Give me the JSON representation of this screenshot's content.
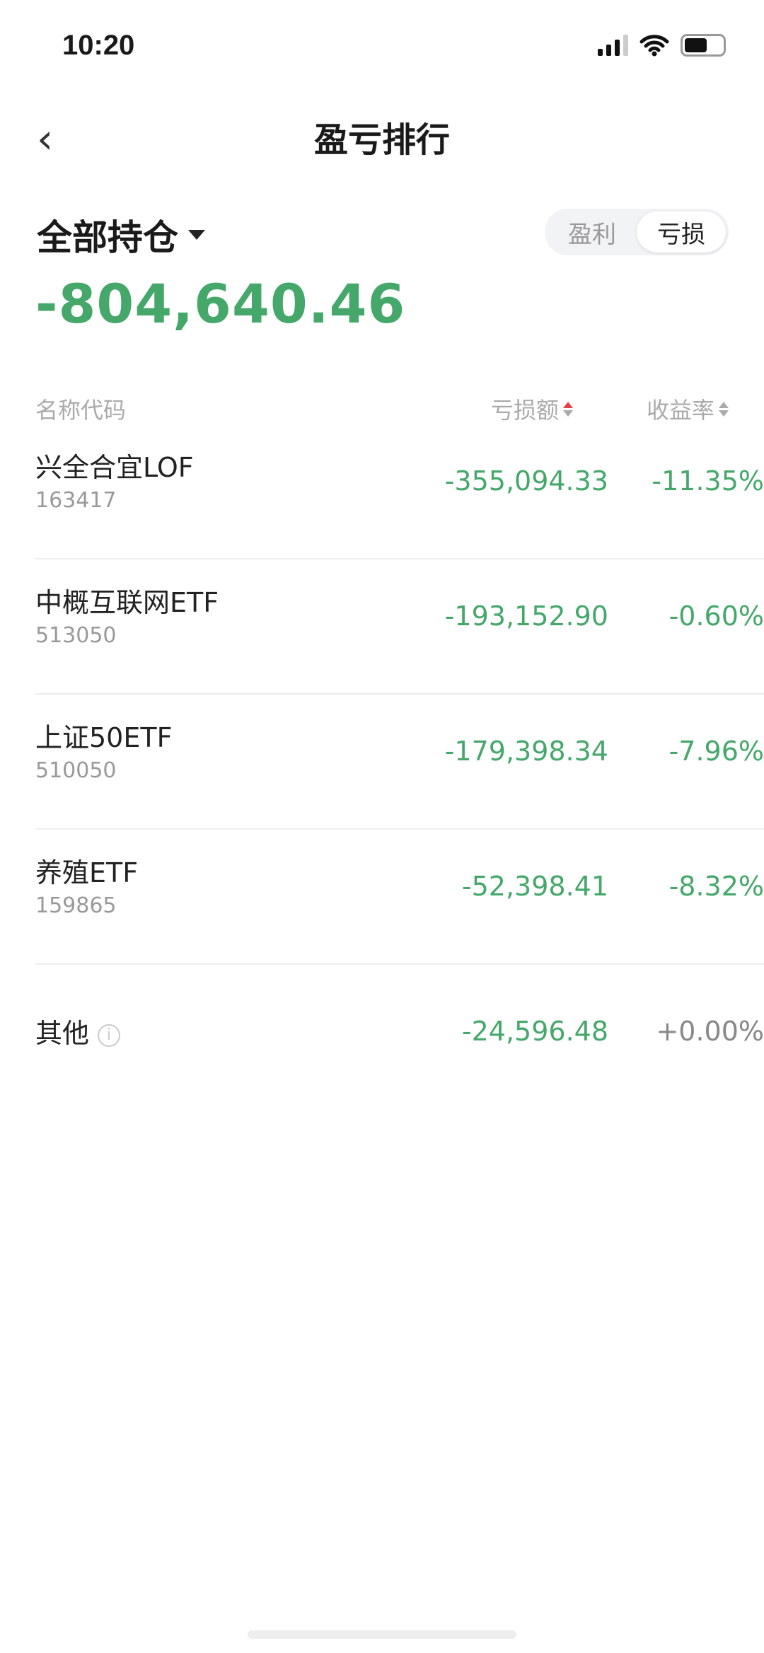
{
  "status_bar": {
    "time": "10:20"
  },
  "header": {
    "title": "盈亏排行",
    "back_icon": "chevron-left-icon"
  },
  "filter": {
    "label": "全部持仓"
  },
  "toggle": {
    "options": [
      "盈利",
      "亏损"
    ],
    "selected": "亏损"
  },
  "summary": {
    "total": "-804,640.46",
    "color": "#45a86a"
  },
  "columns": {
    "name": "名称代码",
    "amount": "亏损额",
    "rate": "收益率"
  },
  "rows": [
    {
      "name": "兴全合宜LOF",
      "code": "163417",
      "amount": "-355,094.33",
      "rate": "-11.35%"
    },
    {
      "name": "中概互联网ETF",
      "code": "513050",
      "amount": "-193,152.90",
      "rate": "-0.60%"
    },
    {
      "name": "上证50ETF",
      "code": "510050",
      "amount": "-179,398.34",
      "rate": "-7.96%"
    },
    {
      "name": "养殖ETF",
      "code": "159865",
      "amount": "-52,398.41",
      "rate": "-8.32%"
    }
  ],
  "other": {
    "name": "其他",
    "amount": "-24,596.48",
    "rate": "+0.00%",
    "icon": "info-icon",
    "info_glyph": "i"
  }
}
